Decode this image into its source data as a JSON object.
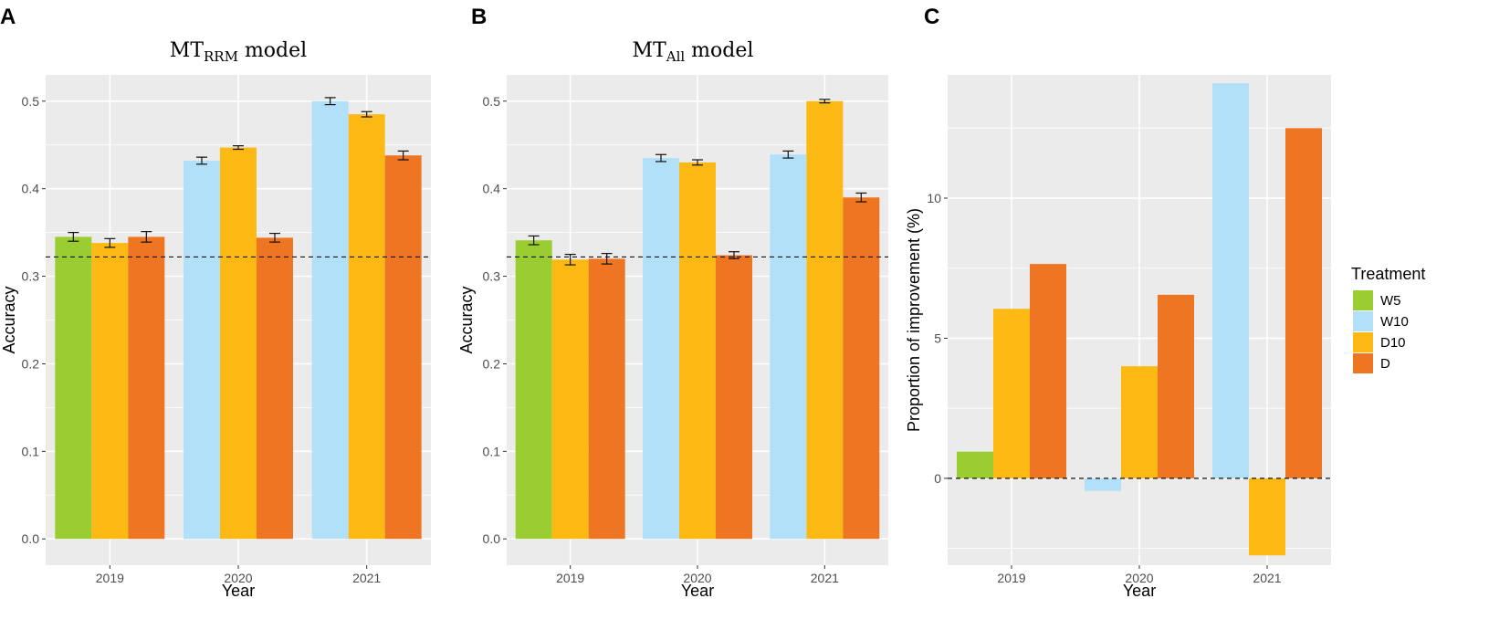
{
  "colors": {
    "panel_bg": "#EBEBEB",
    "grid": "#FFFFFF",
    "W5": "#9ACD32",
    "W10": "#B3E0F9",
    "D10": "#FDB913",
    "D": "#EE7623"
  },
  "legend": {
    "title": "Treatment",
    "items": [
      "W5",
      "W10",
      "D10",
      "D"
    ]
  },
  "chart_data": [
    {
      "panel": "A",
      "type": "bar",
      "title_main": "MT",
      "title_sub": "RRM",
      "title_suffix": " model",
      "xlabel": "Year",
      "ylabel": "Accuracy",
      "ylim": [
        -0.03,
        0.53
      ],
      "yticks": [
        0.0,
        0.1,
        0.2,
        0.3,
        0.4,
        0.5
      ],
      "ytick_labels": [
        "0.0",
        "0.1",
        "0.2",
        "0.3",
        "0.4",
        "0.5"
      ],
      "categories": [
        "2019",
        "2020",
        "2021"
      ],
      "reference_line": 0.322,
      "groups": [
        {
          "year": "2019",
          "bars": [
            {
              "treatment": "W5",
              "value": 0.345,
              "err": 0.005
            },
            {
              "treatment": "D10",
              "value": 0.338,
              "err": 0.005
            },
            {
              "treatment": "D",
              "value": 0.345,
              "err": 0.006
            }
          ]
        },
        {
          "year": "2020",
          "bars": [
            {
              "treatment": "W10",
              "value": 0.432,
              "err": 0.004
            },
            {
              "treatment": "D10",
              "value": 0.447,
              "err": 0.002
            },
            {
              "treatment": "D",
              "value": 0.344,
              "err": 0.005
            }
          ]
        },
        {
          "year": "2021",
          "bars": [
            {
              "treatment": "W10",
              "value": 0.5,
              "err": 0.004
            },
            {
              "treatment": "D10",
              "value": 0.485,
              "err": 0.003
            },
            {
              "treatment": "D",
              "value": 0.438,
              "err": 0.005
            }
          ]
        }
      ]
    },
    {
      "panel": "B",
      "type": "bar",
      "title_main": "MT",
      "title_sub": "All",
      "title_suffix": " model",
      "xlabel": "Year",
      "ylabel": "Accuracy",
      "ylim": [
        -0.03,
        0.53
      ],
      "yticks": [
        0.0,
        0.1,
        0.2,
        0.3,
        0.4,
        0.5
      ],
      "ytick_labels": [
        "0.0",
        "0.1",
        "0.2",
        "0.3",
        "0.4",
        "0.5"
      ],
      "categories": [
        "2019",
        "2020",
        "2021"
      ],
      "reference_line": 0.322,
      "groups": [
        {
          "year": "2019",
          "bars": [
            {
              "treatment": "W5",
              "value": 0.341,
              "err": 0.005
            },
            {
              "treatment": "D10",
              "value": 0.319,
              "err": 0.006
            },
            {
              "treatment": "D",
              "value": 0.32,
              "err": 0.006
            }
          ]
        },
        {
          "year": "2020",
          "bars": [
            {
              "treatment": "W10",
              "value": 0.435,
              "err": 0.004
            },
            {
              "treatment": "D10",
              "value": 0.43,
              "err": 0.003
            },
            {
              "treatment": "D",
              "value": 0.324,
              "err": 0.004
            }
          ]
        },
        {
          "year": "2021",
          "bars": [
            {
              "treatment": "W10",
              "value": 0.439,
              "err": 0.004
            },
            {
              "treatment": "D10",
              "value": 0.5,
              "err": 0.002
            },
            {
              "treatment": "D",
              "value": 0.39,
              "err": 0.005
            }
          ]
        }
      ]
    },
    {
      "panel": "C",
      "type": "bar",
      "title_main": "",
      "title_sub": "",
      "title_suffix": "",
      "xlabel": "Year",
      "ylabel": "Proportion of improvement (%)",
      "ylim": [
        -3.1,
        14.4
      ],
      "yticks": [
        0,
        5,
        10
      ],
      "ytick_labels": [
        "0",
        "5",
        "10"
      ],
      "categories": [
        "2019",
        "2020",
        "2021"
      ],
      "reference_line": 0,
      "groups": [
        {
          "year": "2019",
          "bars": [
            {
              "treatment": "W5",
              "value": 0.95
            },
            {
              "treatment": "D10",
              "value": 6.05
            },
            {
              "treatment": "D",
              "value": 7.65
            }
          ]
        },
        {
          "year": "2020",
          "bars": [
            {
              "treatment": "W10",
              "value": -0.45
            },
            {
              "treatment": "D10",
              "value": 4.0
            },
            {
              "treatment": "D",
              "value": 6.55
            }
          ]
        },
        {
          "year": "2021",
          "bars": [
            {
              "treatment": "W10",
              "value": 14.1
            },
            {
              "treatment": "D10",
              "value": -2.75
            },
            {
              "treatment": "D",
              "value": 12.5
            }
          ]
        }
      ]
    }
  ]
}
